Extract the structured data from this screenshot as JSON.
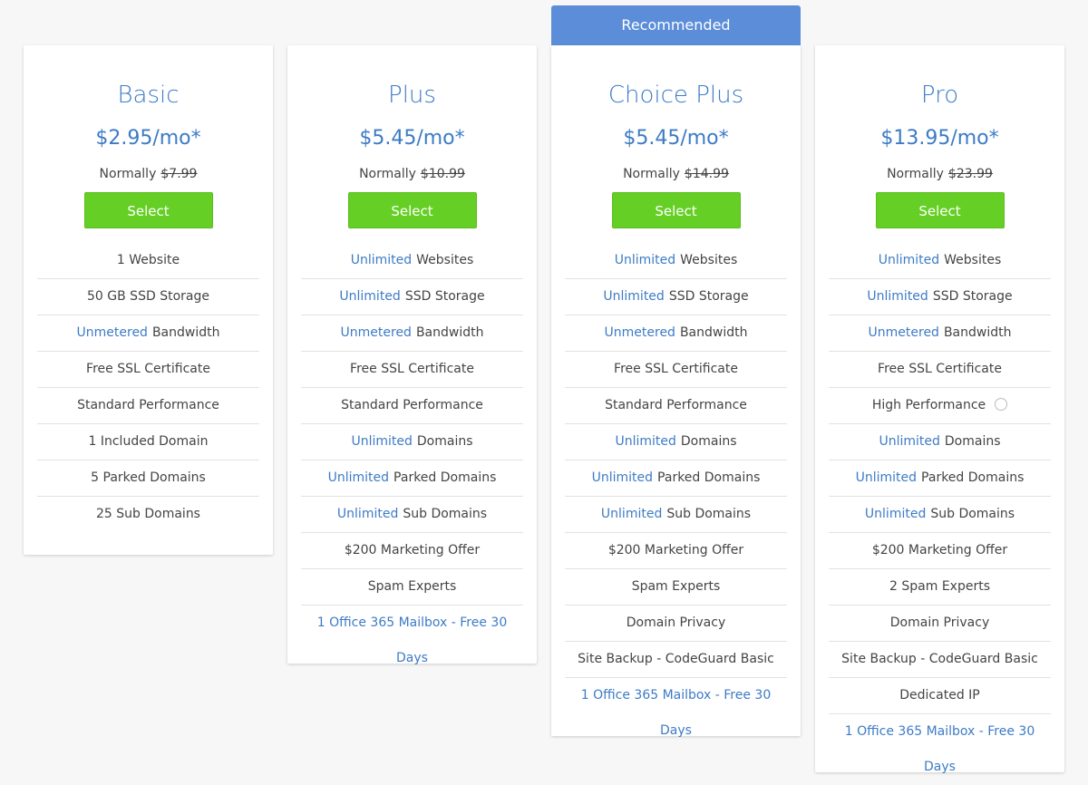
{
  "plans": [
    {
      "name": "Basic",
      "price": "$2.95/mo*",
      "normally": "Normally",
      "old_price": "$7.99",
      "button": "Select",
      "features": [
        {
          "text": "1 Website"
        },
        {
          "text": "50 GB SSD Storage"
        },
        {
          "highlight": "Unmetered",
          "text": "Bandwidth"
        },
        {
          "text": "Free SSL Certificate"
        },
        {
          "text": "Standard Performance"
        },
        {
          "text": "1 Included Domain"
        },
        {
          "text": "5 Parked Domains"
        },
        {
          "text": "25 Sub Domains"
        }
      ]
    },
    {
      "name": "Plus",
      "price": "$5.45/mo*",
      "normally": "Normally",
      "old_price": "$10.99",
      "button": "Select",
      "features": [
        {
          "highlight": "Unlimited",
          "text": "Websites"
        },
        {
          "highlight": "Unlimited",
          "text": "SSD Storage"
        },
        {
          "highlight": "Unmetered",
          "text": "Bandwidth"
        },
        {
          "text": "Free SSL Certificate"
        },
        {
          "text": "Standard Performance"
        },
        {
          "highlight": "Unlimited",
          "text": "Domains"
        },
        {
          "highlight": "Unlimited",
          "text": "Parked Domains"
        },
        {
          "highlight": "Unlimited",
          "text": "Sub Domains"
        },
        {
          "text": "$200 Marketing Offer"
        },
        {
          "text": "Spam Experts"
        },
        {
          "highlight": "1 Office 365 Mailbox - Free 30 Days"
        }
      ]
    },
    {
      "badge": "Recommended",
      "name": "Choice Plus",
      "price": "$5.45/mo*",
      "normally": "Normally",
      "old_price": "$14.99",
      "button": "Select",
      "features": [
        {
          "highlight": "Unlimited",
          "text": "Websites"
        },
        {
          "highlight": "Unlimited",
          "text": "SSD Storage"
        },
        {
          "highlight": "Unmetered",
          "text": "Bandwidth"
        },
        {
          "text": "Free SSL Certificate"
        },
        {
          "text": "Standard Performance"
        },
        {
          "highlight": "Unlimited",
          "text": "Domains"
        },
        {
          "highlight": "Unlimited",
          "text": "Parked Domains"
        },
        {
          "highlight": "Unlimited",
          "text": "Sub Domains"
        },
        {
          "text": "$200 Marketing Offer"
        },
        {
          "text": "Spam Experts"
        },
        {
          "text": "Domain Privacy"
        },
        {
          "text": "Site Backup - CodeGuard Basic"
        },
        {
          "highlight": "1 Office 365 Mailbox - Free 30 Days"
        }
      ]
    },
    {
      "name": "Pro",
      "price": "$13.95/mo*",
      "normally": "Normally",
      "old_price": "$23.99",
      "button": "Select",
      "features": [
        {
          "highlight": "Unlimited",
          "text": "Websites"
        },
        {
          "highlight": "Unlimited",
          "text": "SSD Storage"
        },
        {
          "highlight": "Unmetered",
          "text": "Bandwidth"
        },
        {
          "text": "Free SSL Certificate"
        },
        {
          "text": "High Performance",
          "info": true
        },
        {
          "highlight": "Unlimited",
          "text": "Domains"
        },
        {
          "highlight": "Unlimited",
          "text": "Parked Domains"
        },
        {
          "highlight": "Unlimited",
          "text": "Sub Domains"
        },
        {
          "text": "$200 Marketing Offer"
        },
        {
          "text": "2 Spam Experts"
        },
        {
          "text": "Domain Privacy"
        },
        {
          "text": "Site Backup - CodeGuard Basic"
        },
        {
          "text": "Dedicated IP"
        },
        {
          "highlight": "1 Office 365 Mailbox - Free 30 Days"
        }
      ]
    }
  ]
}
